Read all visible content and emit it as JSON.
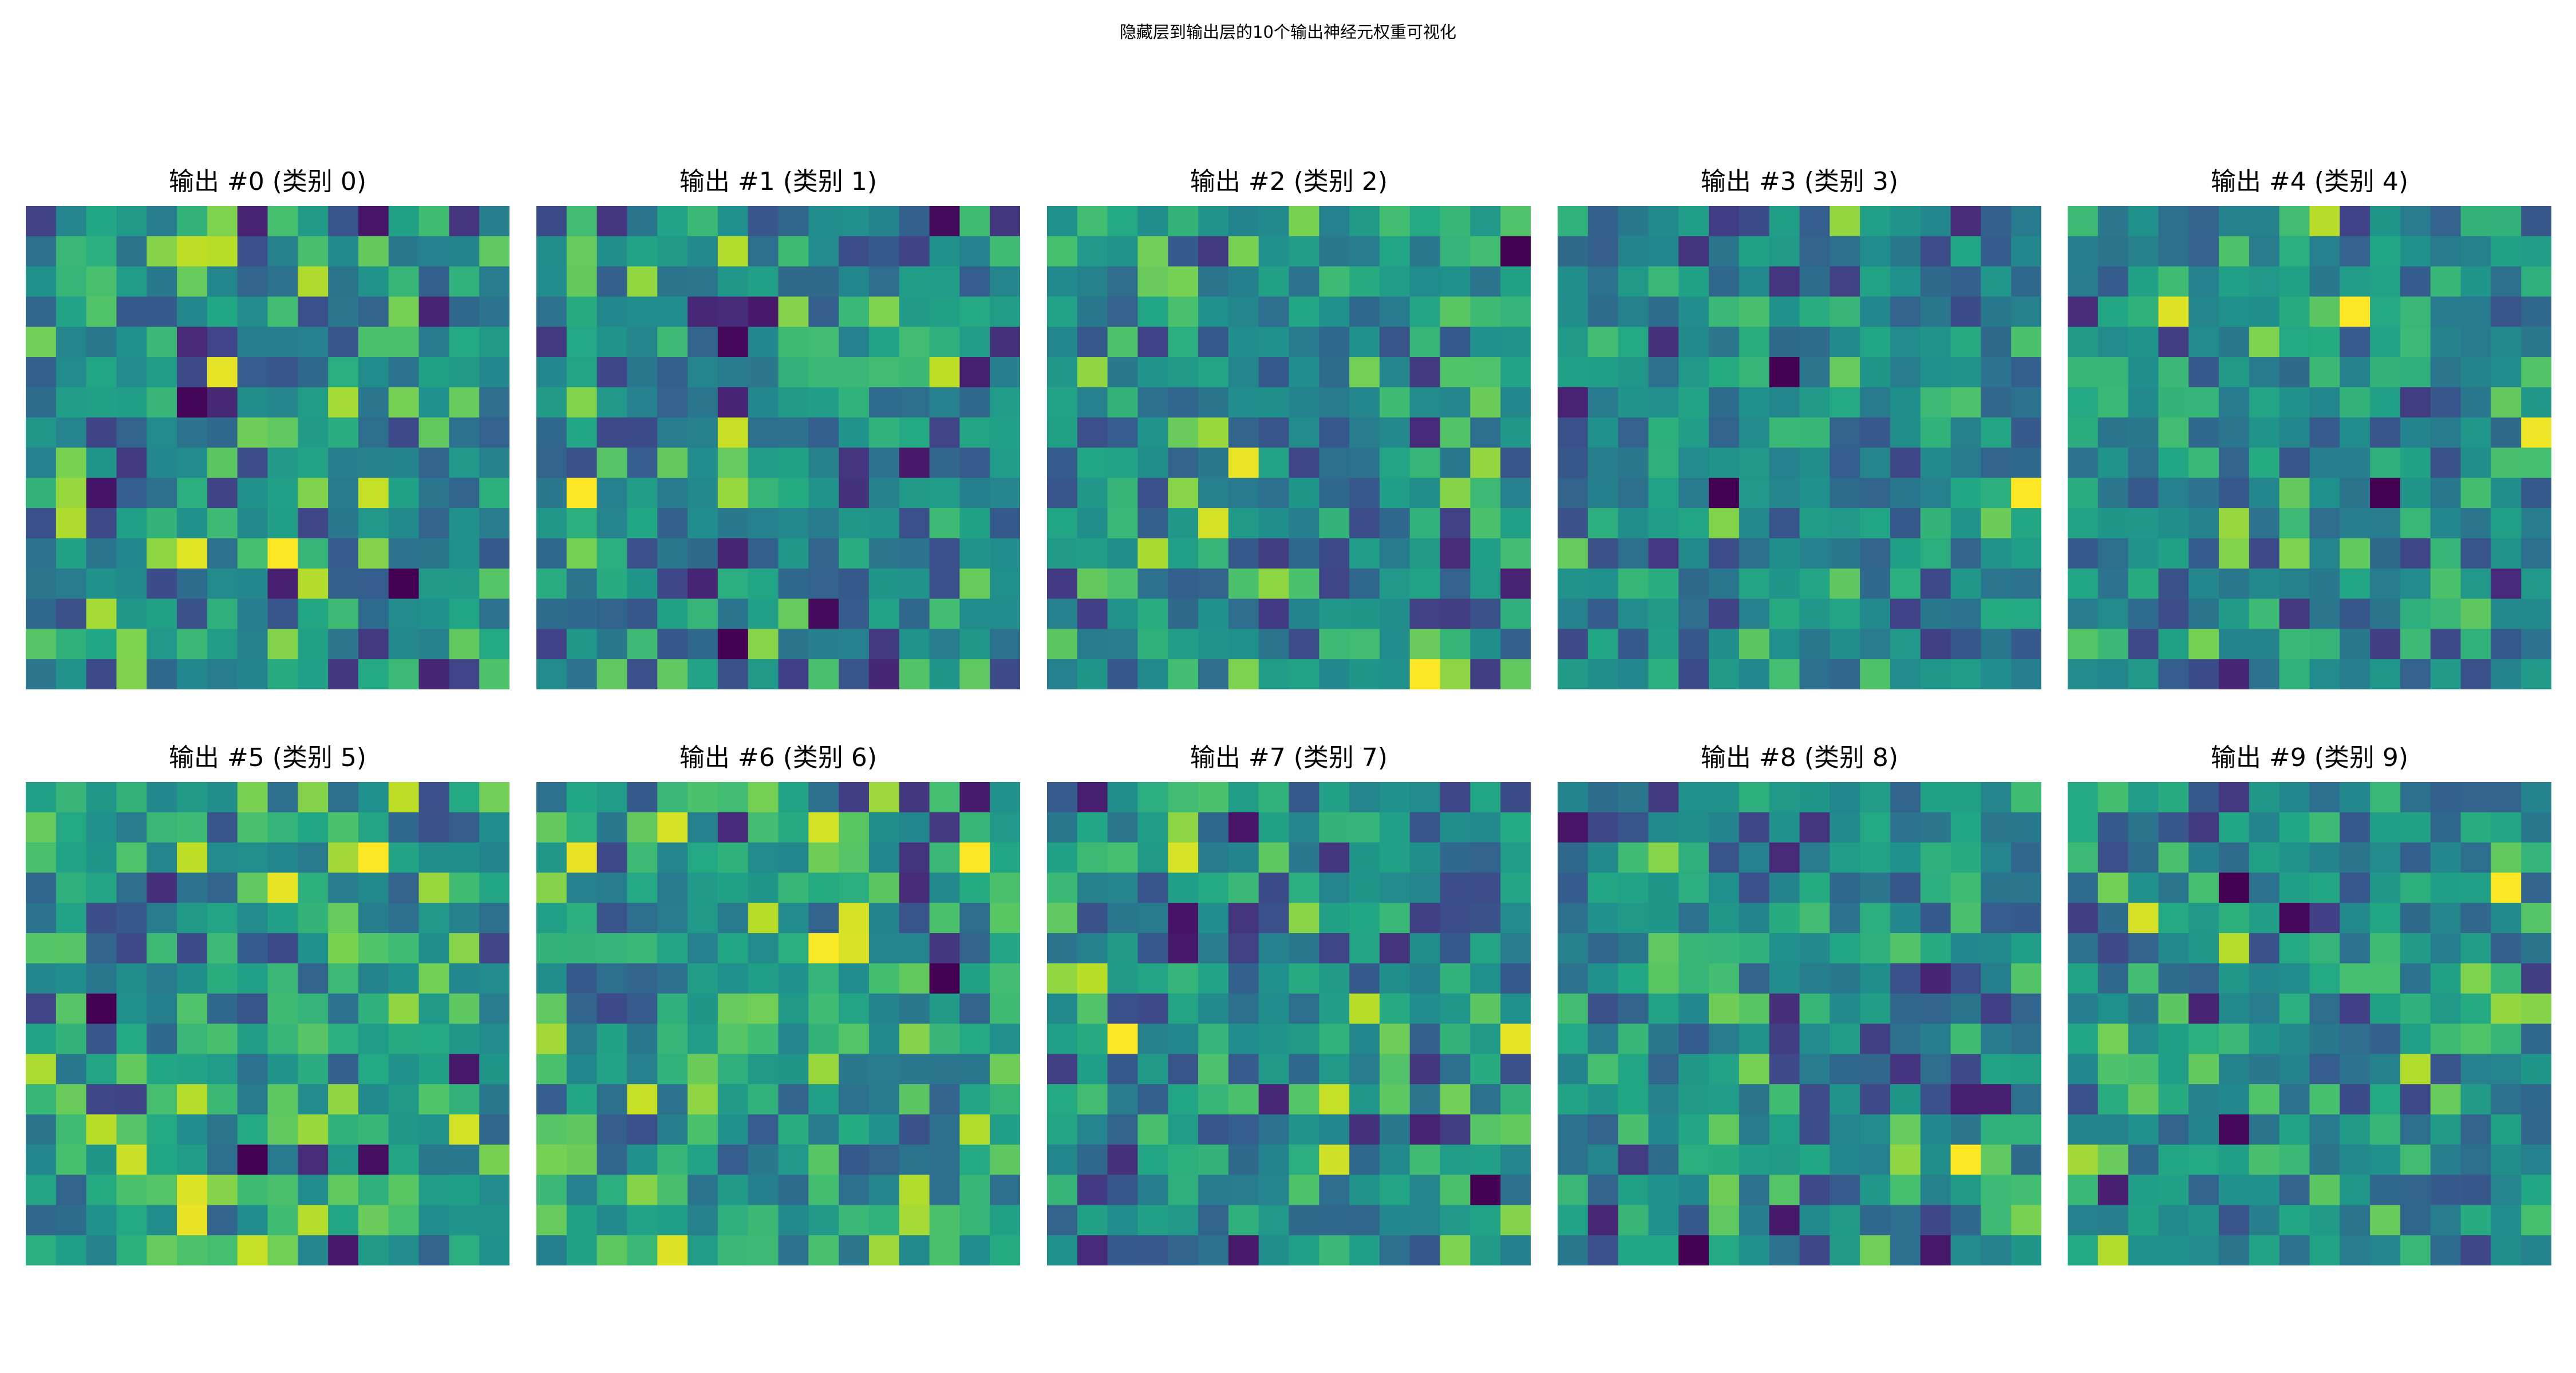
{
  "chart_data": {
    "type": "heatmap",
    "title": "隐藏层到输出层的10个输出神经元权重可视化",
    "colormap": "viridis",
    "axes_visible": false,
    "grid": false,
    "layout": {
      "rows": 2,
      "cols": 5
    },
    "panels": [
      {
        "title": "输出 #0 (类别 0)",
        "seed": 101
      },
      {
        "title": "输出 #1 (类别 1)",
        "seed": 202
      },
      {
        "title": "输出 #2 (类别 2)",
        "seed": 303
      },
      {
        "title": "输出 #3 (类别 3)",
        "seed": 404
      },
      {
        "title": "输出 #4 (类别 4)",
        "seed": 505
      },
      {
        "title": "输出 #5 (类别 5)",
        "seed": 606
      },
      {
        "title": "输出 #6 (类别 6)",
        "seed": 707
      },
      {
        "title": "输出 #7 (类别 7)",
        "seed": 808
      },
      {
        "title": "输出 #8 (类别 8)",
        "seed": 909
      },
      {
        "title": "输出 #9 (类别 9)",
        "seed": 1010
      }
    ]
  }
}
